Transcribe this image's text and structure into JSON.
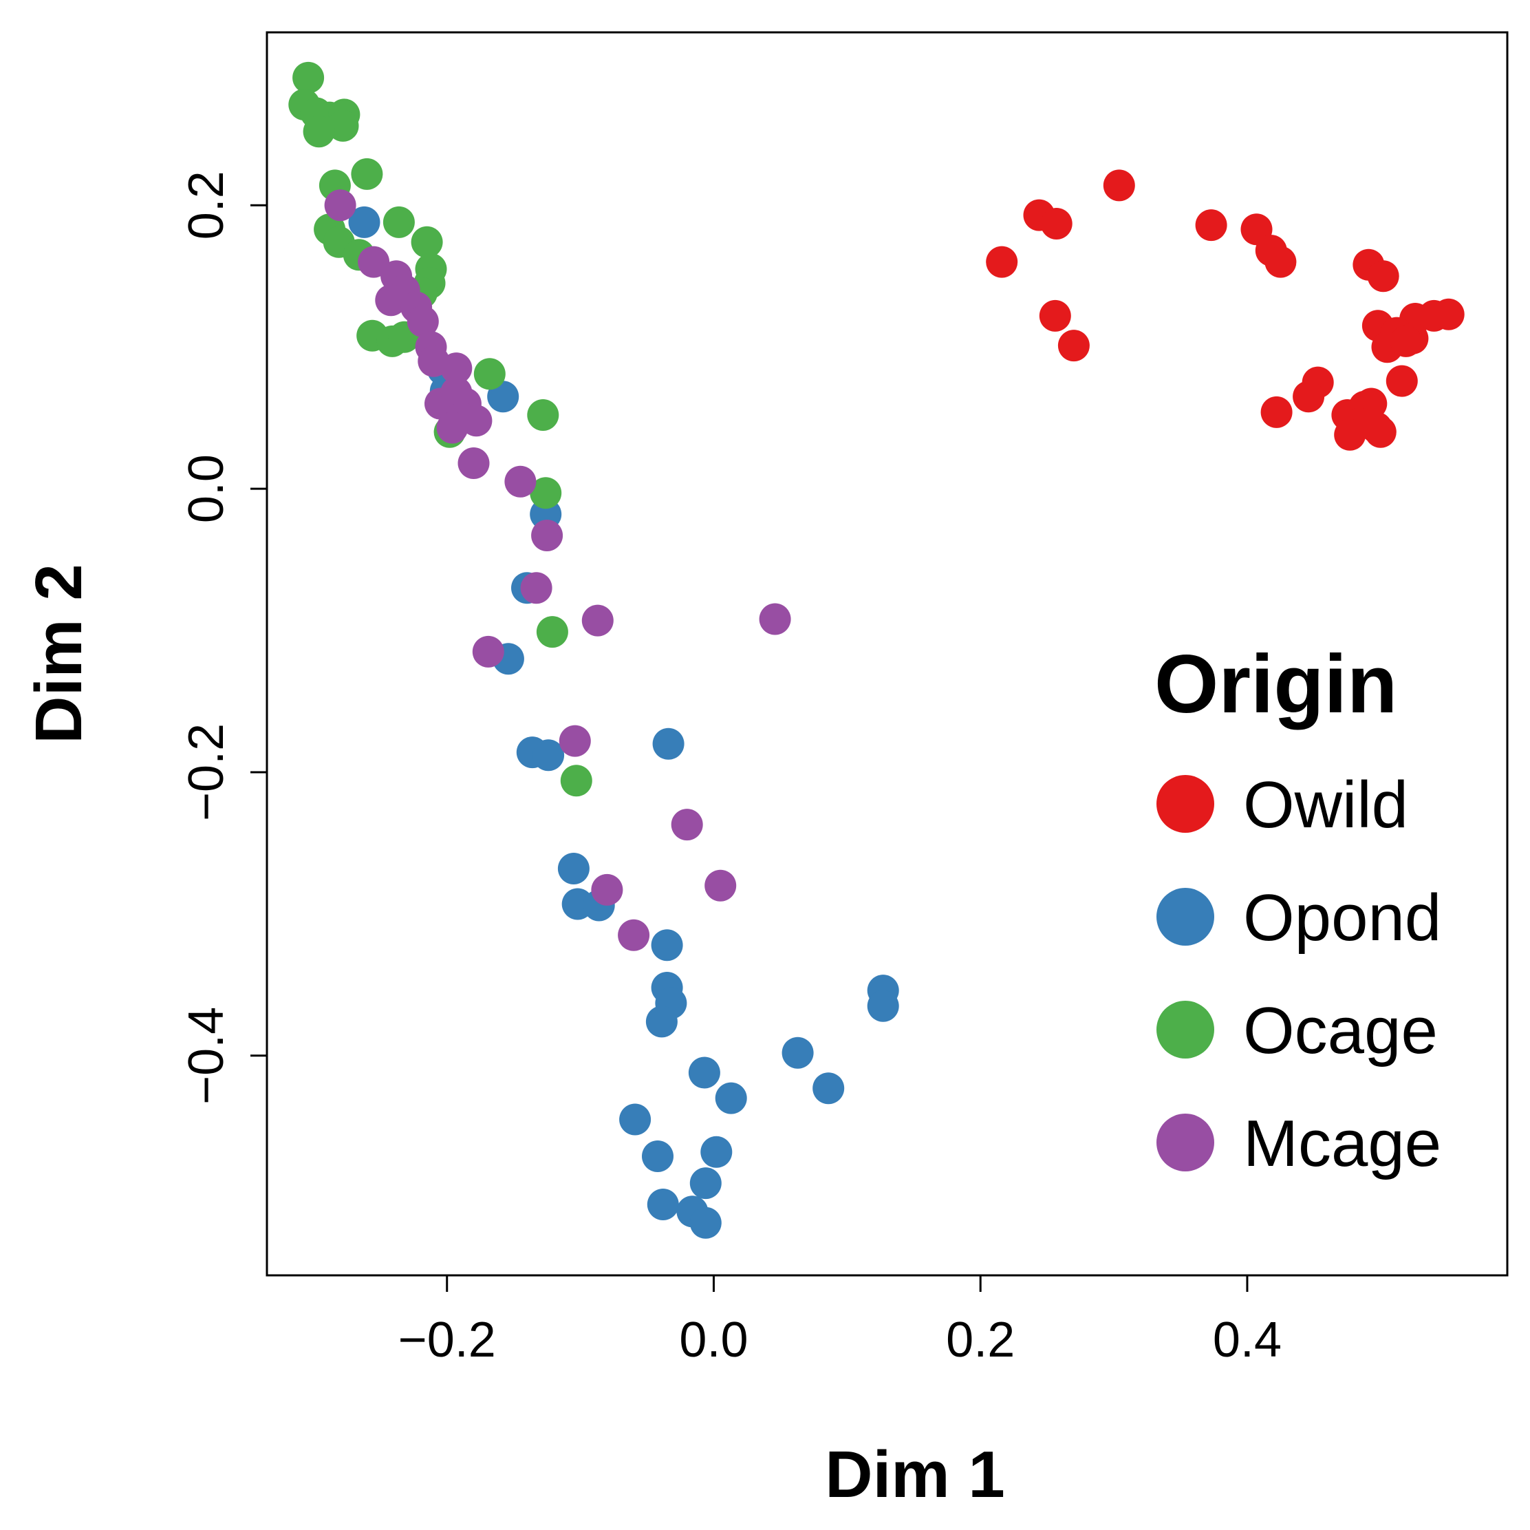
{
  "chart_data": {
    "type": "scatter",
    "title": "",
    "xlabel": "Dim 1",
    "ylabel": "Dim 2",
    "xlim": [
      -0.335,
      0.595
    ],
    "ylim": [
      -0.555,
      0.322
    ],
    "grid": false,
    "x_ticks": [
      -0.2,
      0.0,
      0.2,
      0.4
    ],
    "x_tick_labels": [
      "−0.2",
      "0.0",
      "0.2",
      "0.4"
    ],
    "y_ticks": [
      -0.4,
      -0.2,
      0.0,
      0.2
    ],
    "y_tick_labels": [
      "−0.4",
      "−0.2",
      "0.0",
      "0.2"
    ],
    "legend": {
      "title": "Origin",
      "position": "right"
    },
    "series": [
      {
        "name": "Owild",
        "color": "#E41A1C",
        "points": [
          [
            0.304,
            0.214
          ],
          [
            0.244,
            0.193
          ],
          [
            0.257,
            0.187
          ],
          [
            0.373,
            0.186
          ],
          [
            0.407,
            0.183
          ],
          [
            0.418,
            0.168
          ],
          [
            0.425,
            0.16
          ],
          [
            0.216,
            0.16
          ],
          [
            0.491,
            0.158
          ],
          [
            0.502,
            0.15
          ],
          [
            0.256,
            0.122
          ],
          [
            0.27,
            0.101
          ],
          [
            0.526,
            0.12
          ],
          [
            0.54,
            0.122
          ],
          [
            0.551,
            0.123
          ],
          [
            0.498,
            0.115
          ],
          [
            0.512,
            0.11
          ],
          [
            0.524,
            0.106
          ],
          [
            0.505,
            0.1
          ],
          [
            0.519,
            0.104
          ],
          [
            0.453,
            0.075
          ],
          [
            0.446,
            0.065
          ],
          [
            0.516,
            0.076
          ],
          [
            0.422,
            0.054
          ],
          [
            0.488,
            0.058
          ],
          [
            0.493,
            0.06
          ],
          [
            0.475,
            0.052
          ],
          [
            0.484,
            0.046
          ],
          [
            0.497,
            0.043
          ],
          [
            0.5,
            0.04
          ],
          [
            0.477,
            0.038
          ]
        ]
      },
      {
        "name": "Opond",
        "color": "#377EB8",
        "points": [
          [
            -0.262,
            0.188
          ],
          [
            -0.203,
            0.084
          ],
          [
            -0.201,
            0.069
          ],
          [
            -0.158,
            0.065
          ],
          [
            -0.126,
            -0.018
          ],
          [
            -0.14,
            -0.07
          ],
          [
            -0.154,
            -0.12
          ],
          [
            -0.136,
            -0.186
          ],
          [
            -0.124,
            -0.188
          ],
          [
            -0.034,
            -0.18
          ],
          [
            -0.105,
            -0.268
          ],
          [
            -0.102,
            -0.293
          ],
          [
            -0.086,
            -0.294
          ],
          [
            -0.035,
            -0.322
          ],
          [
            -0.035,
            -0.352
          ],
          [
            -0.032,
            -0.363
          ],
          [
            -0.039,
            -0.376
          ],
          [
            0.127,
            -0.354
          ],
          [
            0.127,
            -0.365
          ],
          [
            0.063,
            -0.398
          ],
          [
            0.086,
            -0.423
          ],
          [
            -0.007,
            -0.412
          ],
          [
            0.013,
            -0.43
          ],
          [
            -0.059,
            -0.445
          ],
          [
            0.002,
            -0.468
          ],
          [
            -0.042,
            -0.471
          ],
          [
            -0.006,
            -0.49
          ],
          [
            -0.038,
            -0.505
          ],
          [
            -0.016,
            -0.51
          ],
          [
            -0.006,
            -0.518
          ]
        ]
      },
      {
        "name": "Ocage",
        "color": "#4DAF4A",
        "points": [
          [
            -0.304,
            0.29
          ],
          [
            -0.307,
            0.271
          ],
          [
            -0.298,
            0.265
          ],
          [
            -0.288,
            0.262
          ],
          [
            -0.277,
            0.264
          ],
          [
            -0.278,
            0.256
          ],
          [
            -0.296,
            0.252
          ],
          [
            -0.284,
            0.214
          ],
          [
            -0.26,
            0.222
          ],
          [
            -0.236,
            0.188
          ],
          [
            -0.288,
            0.183
          ],
          [
            -0.281,
            0.174
          ],
          [
            -0.266,
            0.165
          ],
          [
            -0.215,
            0.174
          ],
          [
            -0.212,
            0.155
          ],
          [
            -0.213,
            0.145
          ],
          [
            -0.219,
            0.138
          ],
          [
            -0.256,
            0.108
          ],
          [
            -0.241,
            0.104
          ],
          [
            -0.232,
            0.107
          ],
          [
            -0.168,
            0.081
          ],
          [
            -0.128,
            0.052
          ],
          [
            -0.198,
            0.04
          ],
          [
            -0.126,
            -0.003
          ],
          [
            -0.121,
            -0.101
          ],
          [
            -0.103,
            -0.206
          ]
        ]
      },
      {
        "name": "Mcage",
        "color": "#984EA3",
        "points": [
          [
            -0.28,
            0.2
          ],
          [
            -0.255,
            0.16
          ],
          [
            -0.238,
            0.15
          ],
          [
            -0.232,
            0.14
          ],
          [
            -0.242,
            0.133
          ],
          [
            -0.223,
            0.128
          ],
          [
            -0.218,
            0.118
          ],
          [
            -0.212,
            0.1
          ],
          [
            -0.21,
            0.09
          ],
          [
            -0.193,
            0.085
          ],
          [
            -0.205,
            0.06
          ],
          [
            -0.193,
            0.068
          ],
          [
            -0.186,
            0.06
          ],
          [
            -0.189,
            0.05
          ],
          [
            -0.178,
            0.048
          ],
          [
            -0.196,
            0.043
          ],
          [
            -0.18,
            0.018
          ],
          [
            -0.145,
            0.005
          ],
          [
            -0.125,
            -0.033
          ],
          [
            -0.133,
            -0.07
          ],
          [
            -0.087,
            -0.093
          ],
          [
            0.046,
            -0.092
          ],
          [
            -0.169,
            -0.115
          ],
          [
            -0.104,
            -0.178
          ],
          [
            -0.08,
            -0.283
          ],
          [
            -0.02,
            -0.237
          ],
          [
            0.005,
            -0.28
          ],
          [
            -0.06,
            -0.315
          ]
        ]
      }
    ]
  }
}
